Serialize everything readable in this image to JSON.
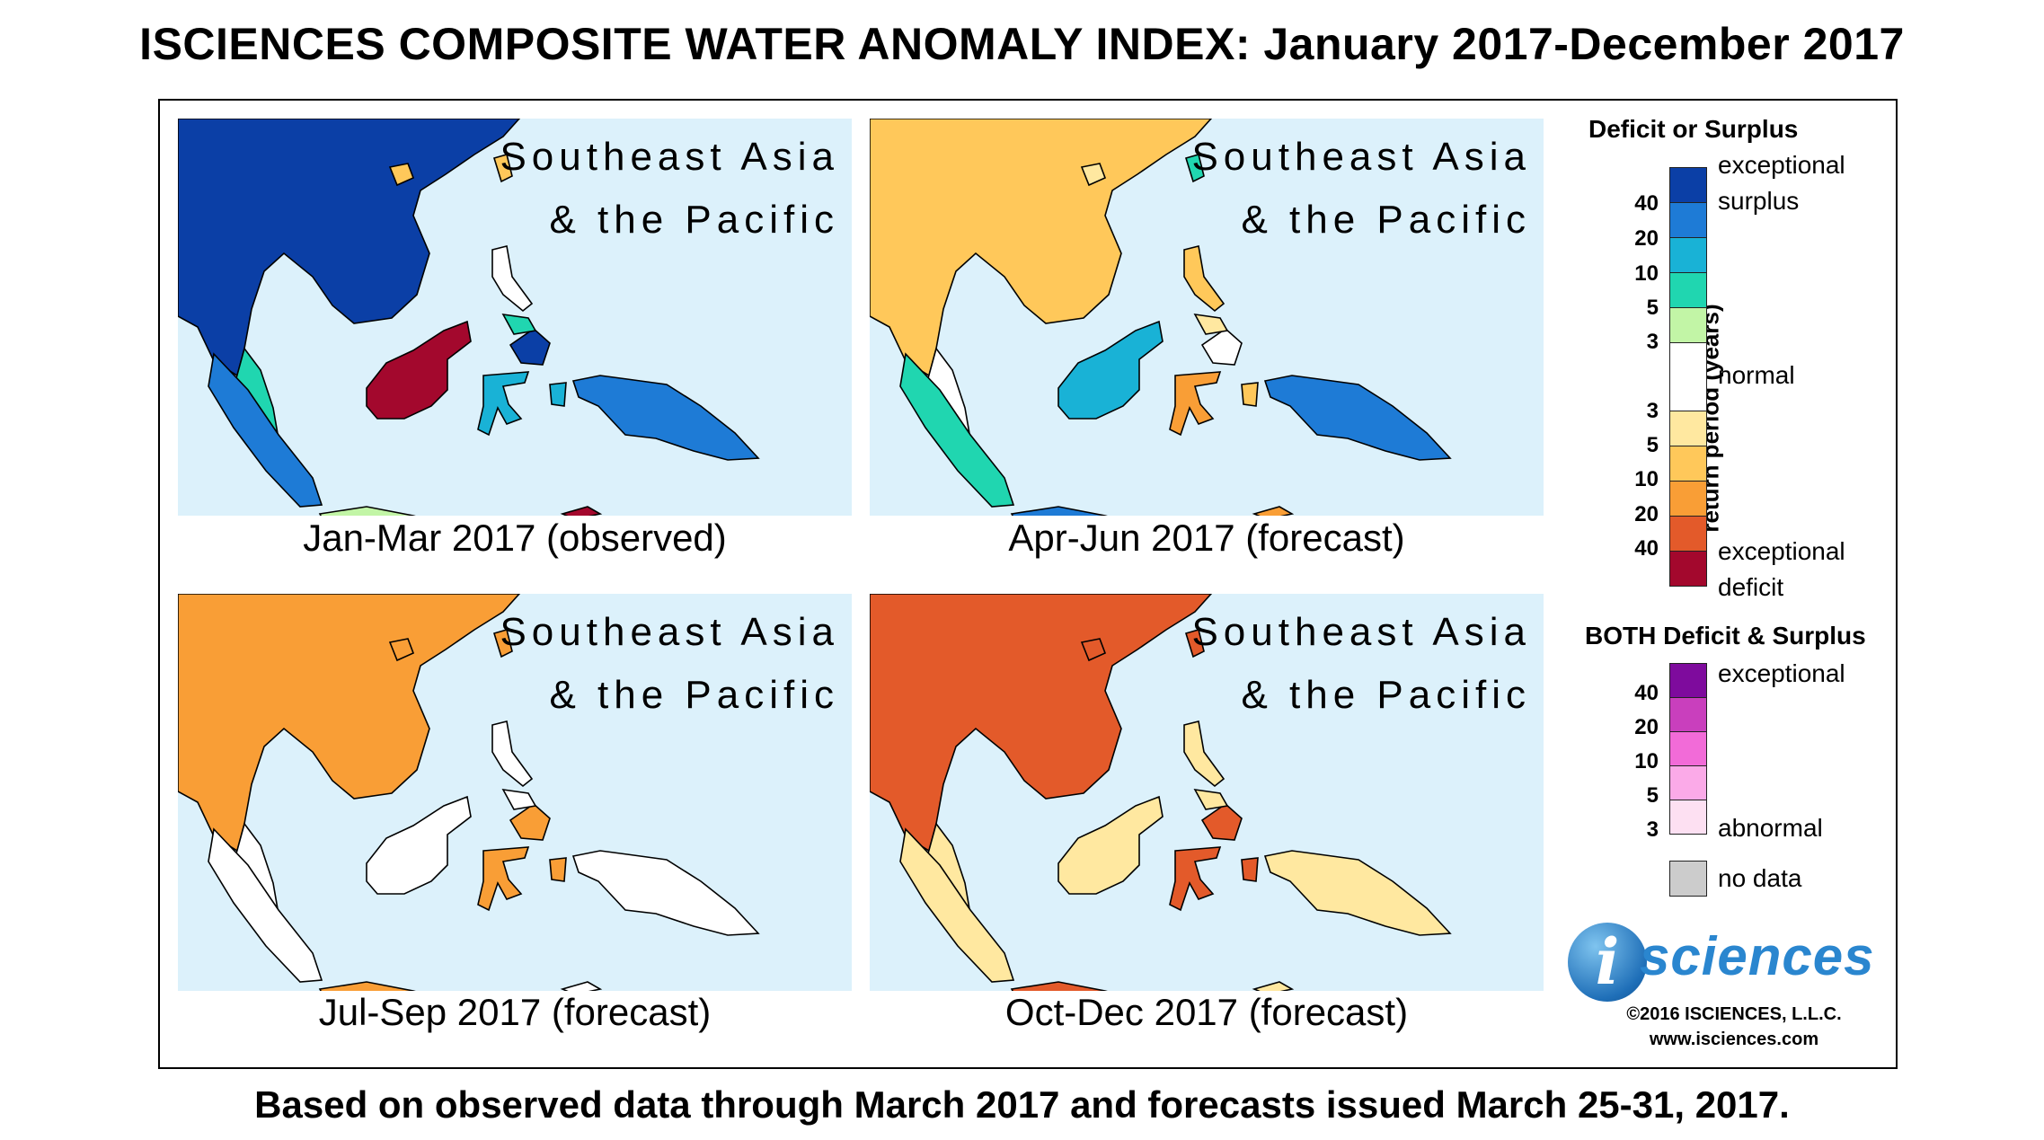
{
  "title": "ISCIENCES COMPOSITE WATER ANOMALY INDEX: January 2017-December 2017",
  "footer": "Based on observed data through March 2017 and forecasts issued March 25-31, 2017.",
  "region_label": {
    "line1": "Southeast Asia",
    "line2": "& the Pacific"
  },
  "panels": [
    {
      "caption": "Jan-Mar 2017 (observed)",
      "anomaly": "mixed-surplus"
    },
    {
      "caption": "Apr-Jun 2017 (forecast)",
      "anomaly": "mixed"
    },
    {
      "caption": "Jul-Sep 2017 (forecast)",
      "anomaly": "deficit"
    },
    {
      "caption": "Oct-Dec 2017 (forecast)",
      "anomaly": "deficit"
    }
  ],
  "legend": {
    "heading1": "Deficit or Surplus",
    "axis_label": "return period (years)",
    "surplus_ticks": [
      "40",
      "20",
      "10",
      "5",
      "3"
    ],
    "deficit_ticks": [
      "3",
      "5",
      "10",
      "20",
      "40"
    ],
    "label_exceptional": "exceptional",
    "label_surplus": "surplus",
    "label_normal": "normal",
    "label_deficit": "deficit",
    "surplus_colors": [
      "#0b3fa6",
      "#1e7bd6",
      "#19b2d6",
      "#20d6b0",
      "#c2f5a6"
    ],
    "normal_color": "#ffffff",
    "deficit_colors": [
      "#ffe8a0",
      "#ffc85a",
      "#f99e36",
      "#e35a2a",
      "#a3082d"
    ],
    "heading2": "BOTH Deficit & Surplus",
    "both_ticks": [
      "40",
      "20",
      "10",
      "5",
      "3"
    ],
    "both_colors": [
      "#7e0b9d",
      "#c93fbd",
      "#f26bd8",
      "#fbaae8",
      "#fde0f2"
    ],
    "label_abnormal": "abnormal",
    "label_no_data": "no data",
    "no_data_color": "#cccccc"
  },
  "logo": {
    "mark": "i",
    "text": "sciences"
  },
  "copyright": "©2016 ISCIENCES, L.L.C.",
  "website": "www.isciences.com"
}
